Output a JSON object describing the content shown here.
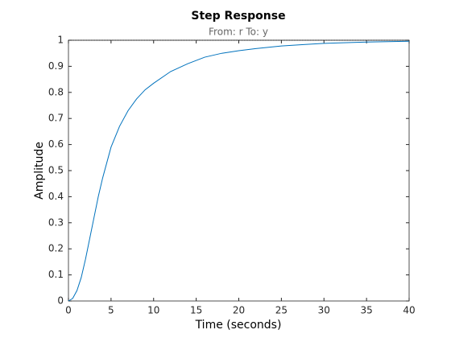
{
  "chart_data": {
    "type": "line",
    "title": "Step Response",
    "subtitle": "From: r  To: y",
    "x_label": "Time (seconds)",
    "y_label": "Amplitude",
    "x": [
      0,
      0.5,
      1,
      1.5,
      2,
      2.5,
      3,
      3.5,
      4,
      5,
      6,
      7,
      8,
      9,
      10,
      12,
      14,
      16,
      18,
      20,
      22,
      25,
      28,
      30,
      35,
      40
    ],
    "series": [
      {
        "name": "y",
        "color": "#0072bd",
        "values": [
          0,
          0.01,
          0.04,
          0.09,
          0.16,
          0.24,
          0.32,
          0.4,
          0.47,
          0.59,
          0.67,
          0.73,
          0.775,
          0.81,
          0.835,
          0.88,
          0.91,
          0.935,
          0.95,
          0.96,
          0.968,
          0.978,
          0.984,
          0.988,
          0.993,
          0.996
        ]
      }
    ],
    "steady_state_value": 1,
    "xlim": [
      0,
      40
    ],
    "ylim": [
      0,
      1
    ],
    "xticks": [
      0,
      5,
      10,
      15,
      20,
      25,
      30,
      35,
      40
    ],
    "yticks": [
      0,
      0.1,
      0.2,
      0.3,
      0.4,
      0.5,
      0.6,
      0.7,
      0.8,
      0.9,
      1
    ],
    "grid": false
  }
}
